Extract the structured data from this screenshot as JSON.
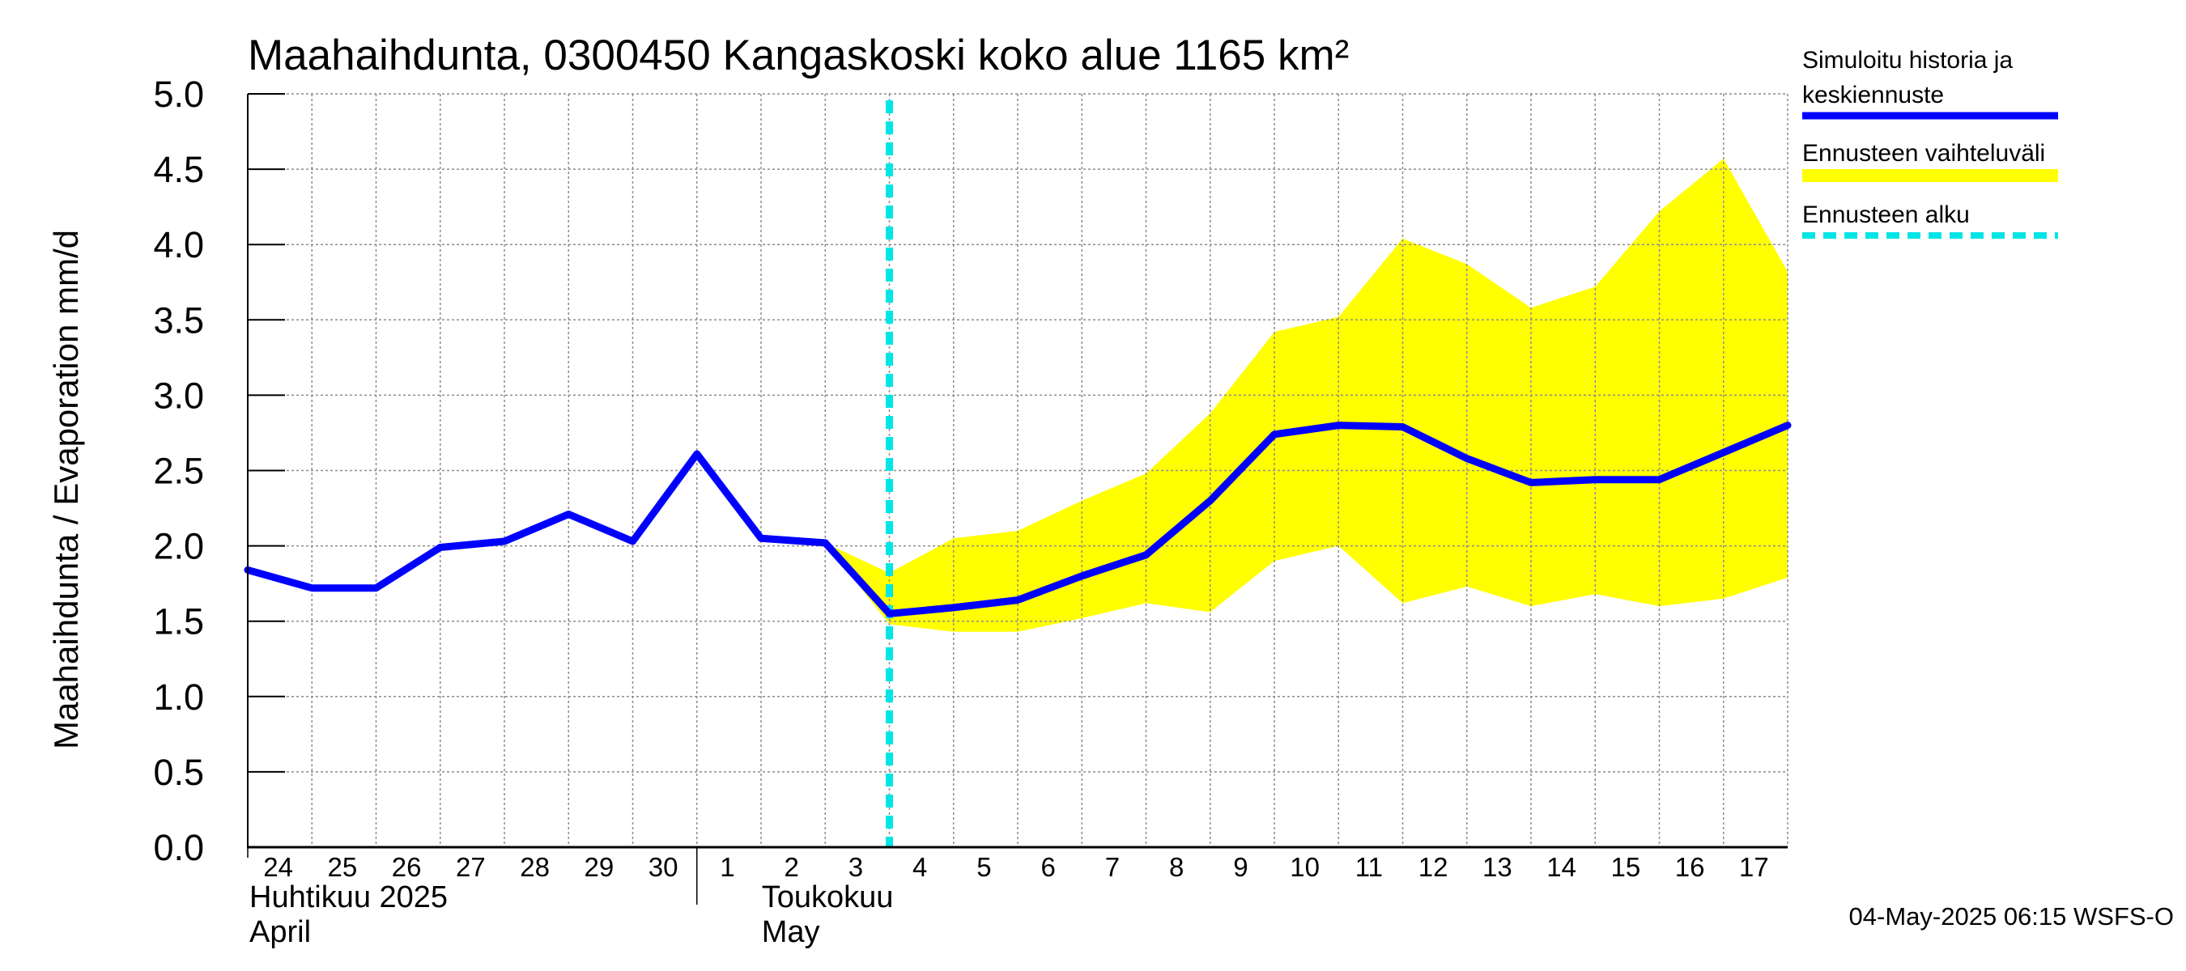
{
  "chart_data": {
    "type": "line",
    "title": "Maahaihdunta, 0300450 Kangaskoski koko alue 1165 km²",
    "ylabel": "Maahaihdunta / Evaporation   mm/d",
    "ylim": [
      0,
      5
    ],
    "yticks": [
      "0.0",
      "0.5",
      "1.0",
      "1.5",
      "2.0",
      "2.5",
      "3.0",
      "3.5",
      "4.0",
      "4.5",
      "5.0"
    ],
    "grid": true,
    "legend_position": "right",
    "x_tick_labels": [
      "24",
      "25",
      "26",
      "27",
      "28",
      "29",
      "30",
      "1",
      "2",
      "3",
      "4",
      "5",
      "6",
      "7",
      "8",
      "9",
      "10",
      "11",
      "12",
      "13",
      "14",
      "15",
      "16",
      "17"
    ],
    "month_labels": [
      {
        "line1": "Huhtikuu  2025",
        "line2": "April"
      },
      {
        "line1": "Toukokuu",
        "line2": "May"
      }
    ],
    "series": [
      {
        "name": "Simuloitu historia ja keskiennuste",
        "color": "#0000ff",
        "x": [
          "2025-04-24",
          "2025-04-25",
          "2025-04-26",
          "2025-04-27",
          "2025-04-28",
          "2025-04-29",
          "2025-04-30",
          "2025-05-01",
          "2025-05-02",
          "2025-05-03",
          "2025-05-04",
          "2025-05-05",
          "2025-05-06",
          "2025-05-07",
          "2025-05-08",
          "2025-05-09",
          "2025-05-10",
          "2025-05-11",
          "2025-05-12",
          "2025-05-13",
          "2025-05-14",
          "2025-05-15",
          "2025-05-16",
          "2025-05-17",
          "2025-05-18"
        ],
        "values": [
          1.84,
          1.72,
          1.72,
          1.99,
          2.03,
          2.21,
          2.03,
          2.61,
          2.05,
          2.02,
          1.55,
          1.59,
          1.64,
          1.8,
          1.94,
          2.3,
          2.74,
          2.8,
          2.79,
          2.58,
          2.42,
          2.44,
          2.44,
          2.62,
          2.8
        ]
      },
      {
        "name": "Ennusteen vaihteluväli",
        "color": "#ffff00",
        "x": [
          "2025-05-03",
          "2025-05-04",
          "2025-05-05",
          "2025-05-06",
          "2025-05-07",
          "2025-05-08",
          "2025-05-09",
          "2025-05-10",
          "2025-05-11",
          "2025-05-12",
          "2025-05-13",
          "2025-05-14",
          "2025-05-15",
          "2025-05-16",
          "2025-05-17",
          "2025-05-18"
        ],
        "upper": [
          2.02,
          1.82,
          2.05,
          2.1,
          2.3,
          2.48,
          2.88,
          3.42,
          3.52,
          4.04,
          3.87,
          3.58,
          3.72,
          4.22,
          4.57,
          3.82
        ],
        "lower": [
          2.02,
          1.48,
          1.43,
          1.43,
          1.52,
          1.62,
          1.56,
          1.9,
          2.0,
          1.62,
          1.73,
          1.6,
          1.68,
          1.6,
          1.65,
          1.79
        ]
      },
      {
        "name": "Ennusteen alku",
        "color": "#00e5e5",
        "x": "2025-05-04"
      }
    ]
  },
  "footer": {
    "timestamp": "04-May-2025 06:15 WSFS-O"
  }
}
